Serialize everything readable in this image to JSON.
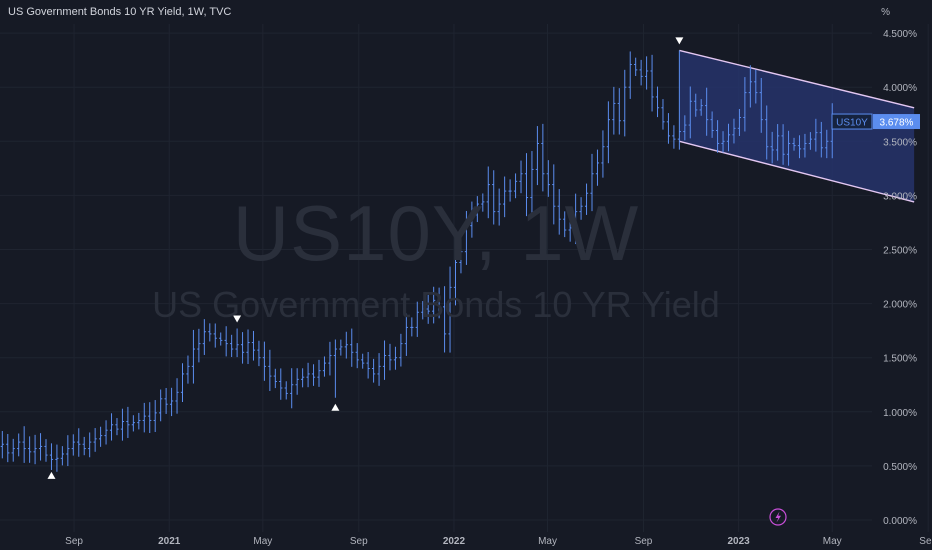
{
  "header": {
    "title": "US Government Bonds 10 YR Yield, 1W, TVC",
    "unit": "%"
  },
  "watermark": {
    "line1": "US10Y, 1W",
    "line2": "US Government Bonds 10 YR Yield"
  },
  "colors": {
    "background": "#161a25",
    "grid": "#1f2430",
    "bars": "#5b8def",
    "channel_line": "#e3c7f2",
    "channel_fill": "#26346b",
    "axis_text": "#b2b5be",
    "price_label_bg": "#5b8def",
    "marker": "#ffffff",
    "lightning": "#c84fd8"
  },
  "chart_data": {
    "type": "ohlc",
    "x_axis_labels": [
      "May",
      "Sep",
      "2021",
      "May",
      "Sep",
      "2022",
      "May",
      "Sep",
      "2023",
      "May",
      "Sep"
    ],
    "y_axis": {
      "ticks": [
        "0.000%",
        "0.500%",
        "1.000%",
        "1.500%",
        "2.000%",
        "2.500%",
        "3.000%",
        "3.500%",
        "4.000%",
        "4.500%"
      ],
      "ylim": [
        0,
        4.6
      ]
    },
    "grid": true,
    "last_price": {
      "symbol": "US10Y",
      "value": "3.678%"
    },
    "weekly_closes": [
      1.6,
      1.55,
      1.2,
      0.9,
      0.7,
      0.55,
      0.6,
      0.65,
      0.6,
      0.62,
      0.65,
      0.62,
      0.64,
      0.68,
      0.7,
      0.62,
      0.66,
      0.72,
      0.66,
      0.63,
      0.66,
      0.68,
      0.6,
      0.56,
      0.57,
      0.61,
      0.66,
      0.72,
      0.7,
      0.66,
      0.72,
      0.75,
      0.78,
      0.83,
      0.88,
      0.84,
      0.91,
      0.88,
      0.9,
      0.92,
      0.96,
      0.92,
      0.99,
      1.12,
      1.07,
      1.1,
      1.18,
      1.35,
      1.42,
      1.58,
      1.63,
      1.74,
      1.72,
      1.68,
      1.66,
      1.63,
      1.58,
      1.62,
      1.55,
      1.64,
      1.57,
      1.5,
      1.42,
      1.33,
      1.28,
      1.22,
      1.17,
      1.25,
      1.3,
      1.32,
      1.35,
      1.32,
      1.38,
      1.45,
      1.52,
      1.58,
      1.6,
      1.62,
      1.55,
      1.48,
      1.45,
      1.4,
      1.35,
      1.42,
      1.52,
      1.48,
      1.5,
      1.63,
      1.78,
      1.78,
      1.92,
      1.95,
      1.93,
      2.03,
      1.97,
      1.72,
      2.15,
      2.38,
      2.48,
      2.72,
      2.82,
      2.92,
      2.94,
      3.1,
      2.85,
      2.92,
      3.04,
      3.04,
      3.13,
      3.2,
      2.98,
      3.24,
      3.48,
      3.2,
      3.1,
      2.9,
      2.78,
      2.68,
      2.7,
      2.85,
      2.9,
      3.02,
      3.2,
      3.3,
      3.45,
      3.7,
      3.85,
      3.69,
      4.0,
      4.21,
      4.16,
      4.1,
      4.15,
      3.91,
      3.81,
      3.68,
      3.55,
      3.52,
      3.59,
      3.65,
      3.87,
      3.79,
      3.83,
      3.7,
      3.6,
      3.48,
      3.5,
      3.56,
      3.62,
      3.72,
      3.95,
      4.05,
      3.95,
      3.7,
      3.45,
      3.42,
      3.55,
      3.38,
      3.48,
      3.46,
      3.43,
      3.48,
      3.52,
      3.58,
      3.44,
      3.5,
      3.678
    ],
    "markers": [
      {
        "x": "2020-03-09",
        "value": 0.318,
        "type": "low"
      },
      {
        "x": "2020-08-03",
        "value": 0.5,
        "type": "low"
      },
      {
        "x": "2021-03-29",
        "value": 1.77,
        "type": "high"
      },
      {
        "x": "2021-08-02",
        "value": 1.13,
        "type": "low"
      },
      {
        "x": "2022-10-17",
        "value": 4.34,
        "type": "high"
      }
    ],
    "channel": {
      "upper": [
        {
          "x": "2022-10-17",
          "value": 4.34
        },
        {
          "x": "2023-08-14",
          "value": 3.81
        }
      ],
      "lower": [
        {
          "x": "2022-10-17",
          "value": 3.5
        },
        {
          "x": "2023-08-14",
          "value": 2.94
        }
      ]
    }
  }
}
